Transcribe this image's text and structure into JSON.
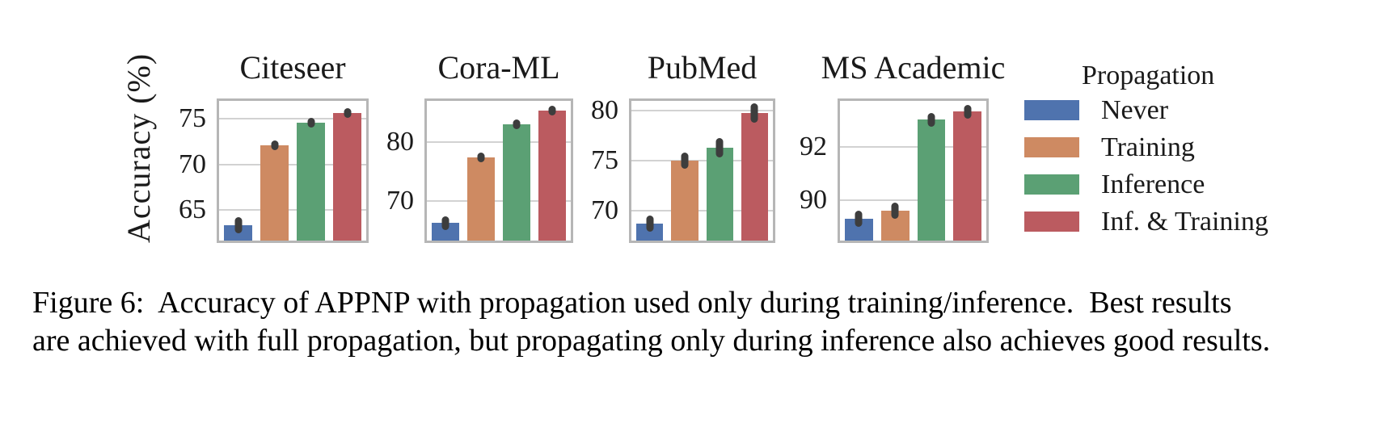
{
  "figure": {
    "caption_line1": "Figure 6:  Accuracy of APPNP with propagation used only during training/inference.  Best results",
    "caption_line2": "are achieved with full propagation, but propagating only during inference also achieves good results."
  },
  "axes": {
    "ylabel": "Accuracy (%)"
  },
  "legend": {
    "title": "Propagation",
    "entries": [
      {
        "label": "Never",
        "color": "#4f73ae"
      },
      {
        "label": "Training",
        "color": "#ce8a62"
      },
      {
        "label": "Inference",
        "color": "#5ba074"
      },
      {
        "label": "Inf. & Training",
        "color": "#bb5b60"
      }
    ]
  },
  "style": {
    "error_bar_color": "#3d3d3d",
    "grid_color": "#d2d2d2",
    "spine_color": "#b6b6b6"
  },
  "chart_data": [
    {
      "type": "bar",
      "title": "Citeseer",
      "categories": [
        "Never",
        "Training",
        "Inference",
        "Inf. & Training"
      ],
      "values": [
        63.3,
        72.1,
        74.6,
        75.7
      ],
      "errors": [
        0.9,
        0.5,
        0.5,
        0.5
      ],
      "yticks": [
        65,
        70,
        75
      ],
      "ylim": [
        61.6,
        77.0
      ],
      "grid": true,
      "ylabel": "Accuracy (%)"
    },
    {
      "type": "bar",
      "title": "Cora-ML",
      "categories": [
        "Never",
        "Training",
        "Inference",
        "Inf. & Training"
      ],
      "values": [
        66.2,
        77.4,
        83.1,
        85.4
      ],
      "errors": [
        1.2,
        0.8,
        0.7,
        0.7
      ],
      "yticks": [
        70,
        80
      ],
      "ylim": [
        63.2,
        87.1
      ],
      "grid": true,
      "ylabel": "Accuracy (%)"
    },
    {
      "type": "bar",
      "title": "PubMed",
      "categories": [
        "Never",
        "Training",
        "Inference",
        "Inf. & Training"
      ],
      "values": [
        68.7,
        75.0,
        76.3,
        79.8
      ],
      "errors": [
        0.8,
        0.8,
        1.0,
        1.0
      ],
      "yticks": [
        70,
        75,
        80
      ],
      "ylim": [
        67.0,
        81.0
      ],
      "grid": true,
      "ylabel": "Accuracy (%)"
    },
    {
      "type": "bar",
      "title": "MS Academic",
      "categories": [
        "Never",
        "Training",
        "Inference",
        "Inf. & Training"
      ],
      "values": [
        89.3,
        89.6,
        93.0,
        93.3
      ],
      "errors": [
        0.3,
        0.3,
        0.25,
        0.25
      ],
      "yticks": [
        90,
        92
      ],
      "ylim": [
        88.5,
        93.7
      ],
      "grid": true,
      "ylabel": "Accuracy (%)"
    }
  ]
}
